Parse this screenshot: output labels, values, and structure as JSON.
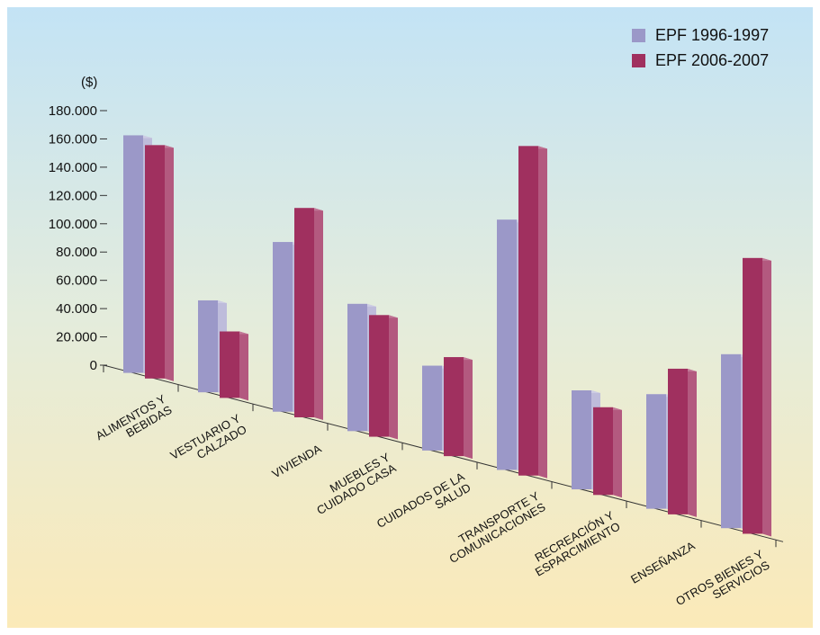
{
  "chart_data": {
    "type": "bar3d",
    "ylabel": "($)",
    "categories": [
      [
        "ALIMENTOS Y",
        "BEBIDAS"
      ],
      [
        "VESTUARIO Y",
        "CALZADO"
      ],
      [
        "VIVIENDA"
      ],
      [
        "MUEBLES Y",
        "CUIDADO CASA"
      ],
      [
        "CUIDADOS  DE LA",
        "SALUD"
      ],
      [
        "TRANSPORTE Y",
        "COMUNICACIONES"
      ],
      [
        "RECREACIÓN Y",
        "ESPARCIMIENTO"
      ],
      [
        "ENSEÑANZA"
      ],
      [
        "OTROS  BIENES Y",
        "SERVICIOS"
      ]
    ],
    "series": [
      {
        "name": "EPF 1996-1997",
        "color": "#9b98c8",
        "values": [
          168000,
          65000,
          120000,
          90000,
          60000,
          177000,
          70000,
          81000,
          123000
        ]
      },
      {
        "name": "EPF 2006-2007",
        "color": "#a0305f",
        "values": [
          165000,
          47000,
          148000,
          86000,
          70000,
          233000,
          62000,
          103000,
          195000
        ]
      }
    ],
    "ylim": [
      0,
      180000
    ],
    "yticks": [
      {
        "value": 0,
        "label": "0"
      },
      {
        "value": 20000,
        "label": "20.000"
      },
      {
        "value": 40000,
        "label": "40.000"
      },
      {
        "value": 60000,
        "label": "60.000"
      },
      {
        "value": 80000,
        "label": "80.000"
      },
      {
        "value": 100000,
        "label": "100.000"
      },
      {
        "value": 120000,
        "label": "120.000"
      },
      {
        "value": 140000,
        "label": "140.000"
      },
      {
        "value": 160000,
        "label": "160.000"
      },
      {
        "value": 180000,
        "label": "180.000"
      }
    ],
    "legend": "top-right"
  }
}
